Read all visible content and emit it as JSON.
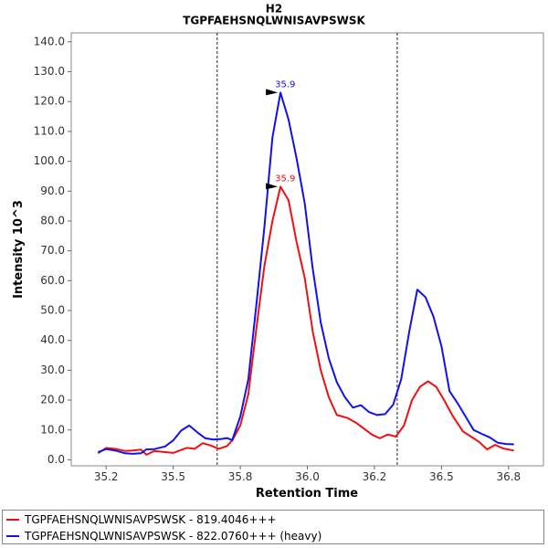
{
  "chart_data": {
    "type": "line",
    "title": "H2",
    "subtitle": "TGPFAEHSNQLWNISAVPSWSK",
    "xlabel": "Retention Time",
    "ylabel": "Intensity 10^3",
    "xlim": [
      35.07,
      36.83
    ],
    "ylim": [
      -2,
      143
    ],
    "x_ticks": [
      "35.2",
      "35.5",
      "35.8",
      "36.0",
      "36.2",
      "36.5",
      "36.8"
    ],
    "x_tick_values": [
      35.2,
      35.45,
      35.7,
      35.95,
      36.2,
      36.45,
      36.7
    ],
    "y_ticks": [
      "0.0",
      "10.0",
      "20.0",
      "30.0",
      "40.0",
      "50.0",
      "60.0",
      "70.0",
      "80.0",
      "90.0",
      "100.0",
      "110.0",
      "120.0",
      "130.0",
      "140.0"
    ],
    "y_tick_values": [
      0,
      10,
      20,
      30,
      40,
      50,
      60,
      70,
      80,
      90,
      100,
      110,
      120,
      130,
      140
    ],
    "integration_bounds": [
      35.614,
      36.285
    ],
    "legend_position": "bottom",
    "series": [
      {
        "name": "TGPFAEHSNQLWNISAVPSWSK - 819.4046+++",
        "color": "#ee1111",
        "points": [
          [
            35.17,
            2.2
          ],
          [
            35.2,
            4.0
          ],
          [
            35.24,
            3.6
          ],
          [
            35.27,
            3.0
          ],
          [
            35.3,
            3.1
          ],
          [
            35.33,
            3.4
          ],
          [
            35.35,
            1.7
          ],
          [
            35.38,
            3.0
          ],
          [
            35.42,
            2.6
          ],
          [
            35.45,
            2.3
          ],
          [
            35.5,
            4.0
          ],
          [
            35.53,
            3.7
          ],
          [
            35.56,
            5.6
          ],
          [
            35.59,
            4.8
          ],
          [
            35.62,
            3.7
          ],
          [
            35.65,
            4.6
          ],
          [
            35.67,
            6.5
          ],
          [
            35.7,
            11.5
          ],
          [
            35.73,
            22.0
          ],
          [
            35.76,
            44.0
          ],
          [
            35.79,
            65.0
          ],
          [
            35.82,
            80.0
          ],
          [
            35.85,
            91.5
          ],
          [
            35.88,
            87.0
          ],
          [
            35.91,
            73.0
          ],
          [
            35.94,
            61.0
          ],
          [
            35.97,
            43.0
          ],
          [
            36.0,
            30.0
          ],
          [
            36.03,
            21.0
          ],
          [
            36.06,
            15.0
          ],
          [
            36.1,
            14.0
          ],
          [
            36.13,
            12.5
          ],
          [
            36.16,
            10.5
          ],
          [
            36.19,
            8.5
          ],
          [
            36.22,
            7.2
          ],
          [
            36.25,
            8.5
          ],
          [
            36.28,
            7.8
          ],
          [
            36.31,
            11.5
          ],
          [
            36.34,
            20.0
          ],
          [
            36.37,
            24.5
          ],
          [
            36.4,
            26.3
          ],
          [
            36.43,
            24.5
          ],
          [
            36.46,
            20.0
          ],
          [
            36.49,
            15.0
          ],
          [
            36.53,
            9.5
          ],
          [
            36.56,
            7.8
          ],
          [
            36.59,
            6.0
          ],
          [
            36.62,
            3.5
          ],
          [
            36.65,
            5.0
          ],
          [
            36.68,
            3.8
          ],
          [
            36.72,
            3.1
          ]
        ],
        "peak": {
          "x": 35.85,
          "y": 91.5,
          "label": "35.9"
        }
      },
      {
        "name": "TGPFAEHSNQLWNISAVPSWSK - 822.0760+++ (heavy)",
        "color": "#1111ee",
        "points": [
          [
            35.17,
            2.6
          ],
          [
            35.2,
            3.6
          ],
          [
            35.24,
            3.0
          ],
          [
            35.27,
            2.2
          ],
          [
            35.3,
            2.0
          ],
          [
            35.33,
            2.2
          ],
          [
            35.35,
            3.5
          ],
          [
            35.38,
            3.6
          ],
          [
            35.42,
            4.5
          ],
          [
            35.45,
            6.5
          ],
          [
            35.48,
            9.8
          ],
          [
            35.51,
            11.5
          ],
          [
            35.54,
            9.2
          ],
          [
            35.57,
            7.2
          ],
          [
            35.6,
            6.8
          ],
          [
            35.63,
            7.0
          ],
          [
            35.65,
            7.3
          ],
          [
            35.67,
            6.6
          ],
          [
            35.7,
            14.5
          ],
          [
            35.73,
            27.0
          ],
          [
            35.76,
            52.0
          ],
          [
            35.79,
            78.0
          ],
          [
            35.82,
            108.0
          ],
          [
            35.85,
            123.0
          ],
          [
            35.88,
            114.0
          ],
          [
            35.91,
            101.0
          ],
          [
            35.94,
            86.0
          ],
          [
            35.97,
            64.0
          ],
          [
            36.0,
            46.0
          ],
          [
            36.03,
            34.0
          ],
          [
            36.06,
            26.0
          ],
          [
            36.09,
            21.0
          ],
          [
            36.12,
            17.5
          ],
          [
            36.15,
            18.3
          ],
          [
            36.18,
            16.0
          ],
          [
            36.21,
            15.0
          ],
          [
            36.24,
            15.3
          ],
          [
            36.27,
            18.5
          ],
          [
            36.3,
            27.0
          ],
          [
            36.33,
            43.0
          ],
          [
            36.36,
            57.0
          ],
          [
            36.39,
            54.5
          ],
          [
            36.42,
            48.0
          ],
          [
            36.45,
            38.0
          ],
          [
            36.48,
            23.0
          ],
          [
            36.51,
            19.0
          ],
          [
            36.54,
            14.5
          ],
          [
            36.57,
            10.0
          ],
          [
            36.6,
            8.7
          ],
          [
            36.63,
            7.5
          ],
          [
            36.66,
            5.7
          ],
          [
            36.69,
            5.3
          ],
          [
            36.72,
            5.2
          ]
        ],
        "peak": {
          "x": 35.85,
          "y": 123.0,
          "label": "35.9"
        }
      }
    ]
  }
}
